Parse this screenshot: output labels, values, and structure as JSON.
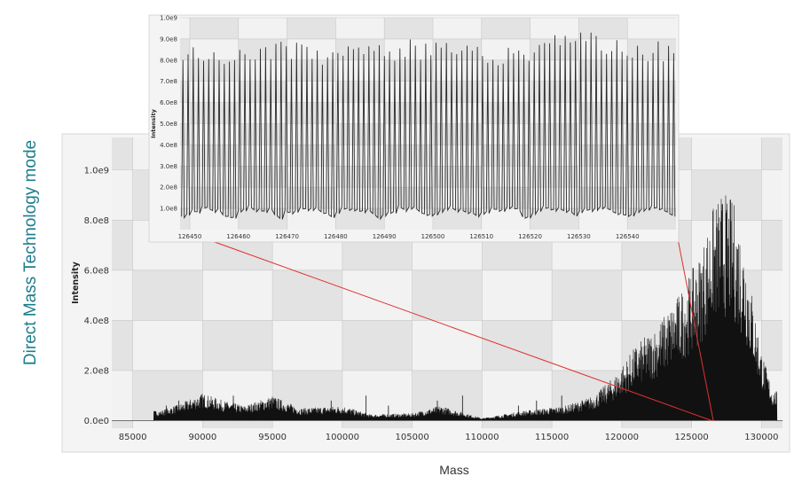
{
  "side_title": "Direct Mass Technology mode",
  "colors": {
    "side_title": "#1d7d8c",
    "zoom_lines": "#e03030",
    "trace": "#111111"
  },
  "chart_data": [
    {
      "type": "line",
      "title": "",
      "xlabel": "Mass",
      "ylabel": "Intensity",
      "xlim": [
        83500,
        131500
      ],
      "ylim": [
        -30000000.0,
        1130000000.0
      ],
      "xticks": [
        85000,
        90000,
        95000,
        100000,
        105000,
        110000,
        115000,
        120000,
        125000,
        130000
      ],
      "xtick_labels": [
        "85000",
        "90000",
        "95000",
        "100000",
        "105000",
        "110000",
        "115000",
        "120000",
        "125000",
        "130000"
      ],
      "yticks": [
        0,
        200000000.0,
        400000000.0,
        600000000.0,
        800000000.0,
        1000000000.0
      ],
      "ytick_labels": [
        "0.0e0",
        "2.0e8",
        "4.0e8",
        "6.0e8",
        "8.0e8",
        "1.0e9"
      ],
      "grid": true,
      "series": [
        {
          "values": [
            {
              "x": 87000,
              "y": 40000000.0
            },
            {
              "x": 88500,
              "y": 70000000.0
            },
            {
              "x": 90000,
              "y": 110000000.0
            },
            {
              "x": 91500,
              "y": 80000000.0
            },
            {
              "x": 93000,
              "y": 60000000.0
            },
            {
              "x": 95000,
              "y": 100000000.0
            },
            {
              "x": 97000,
              "y": 50000000.0
            },
            {
              "x": 100000,
              "y": 60000000.0
            },
            {
              "x": 102000,
              "y": 25000000.0
            },
            {
              "x": 105000,
              "y": 30000000.0
            },
            {
              "x": 107000,
              "y": 60000000.0
            },
            {
              "x": 110000,
              "y": 10000000.0
            },
            {
              "x": 113000,
              "y": 40000000.0
            },
            {
              "x": 116000,
              "y": 60000000.0
            },
            {
              "x": 118000,
              "y": 100000000.0
            },
            {
              "x": 119500,
              "y": 180000000.0
            },
            {
              "x": 121000,
              "y": 300000000.0
            },
            {
              "x": 122500,
              "y": 380000000.0
            },
            {
              "x": 124000,
              "y": 500000000.0
            },
            {
              "x": 125500,
              "y": 650000000.0
            },
            {
              "x": 126500,
              "y": 850000000.0
            },
            {
              "x": 127200,
              "y": 920000000.0
            },
            {
              "x": 128000,
              "y": 880000000.0
            },
            {
              "x": 128800,
              "y": 700000000.0
            },
            {
              "x": 129500,
              "y": 450000000.0
            },
            {
              "x": 130000,
              "y": 280000000.0
            },
            {
              "x": 130800,
              "y": 120000000.0
            }
          ]
        }
      ]
    },
    {
      "type": "line",
      "title": "",
      "xlabel": "",
      "ylabel": "Intensity",
      "xlim": [
        126448,
        126550
      ],
      "ylim": [
        0,
        1000000000.0
      ],
      "xticks": [
        126450,
        126460,
        126470,
        126480,
        126490,
        126500,
        126510,
        126520,
        126530,
        126540
      ],
      "xtick_labels": [
        "126450",
        "126460",
        "126470",
        "126480",
        "126490",
        "126500",
        "126510",
        "126520",
        "126530",
        "126540"
      ],
      "yticks": [
        100000000.0,
        200000000.0,
        300000000.0,
        400000000.0,
        500000000.0,
        600000000.0,
        700000000.0,
        800000000.0,
        900000000.0,
        1000000000.0
      ],
      "ytick_labels": [
        "1.0e8",
        "2.0e8",
        "3.0e8",
        "4.0e8",
        "5.0e8",
        "6.0e8",
        "7.0e8",
        "8.0e8",
        "9.0e8",
        "1.0e9"
      ],
      "grid": true,
      "series": [
        {
          "values": [
            {
              "x": 126450,
              "y": 860000000.0
            },
            {
              "x": 126460,
              "y": 830000000.0
            },
            {
              "x": 126470,
              "y": 850000000.0
            },
            {
              "x": 126480,
              "y": 820000000.0
            },
            {
              "x": 126490,
              "y": 850000000.0
            },
            {
              "x": 126500,
              "y": 860000000.0
            },
            {
              "x": 126510,
              "y": 830000000.0
            },
            {
              "x": 126520,
              "y": 840000000.0
            },
            {
              "x": 126530,
              "y": 920000000.0
            },
            {
              "x": 126540,
              "y": 850000000.0
            }
          ]
        }
      ]
    }
  ]
}
